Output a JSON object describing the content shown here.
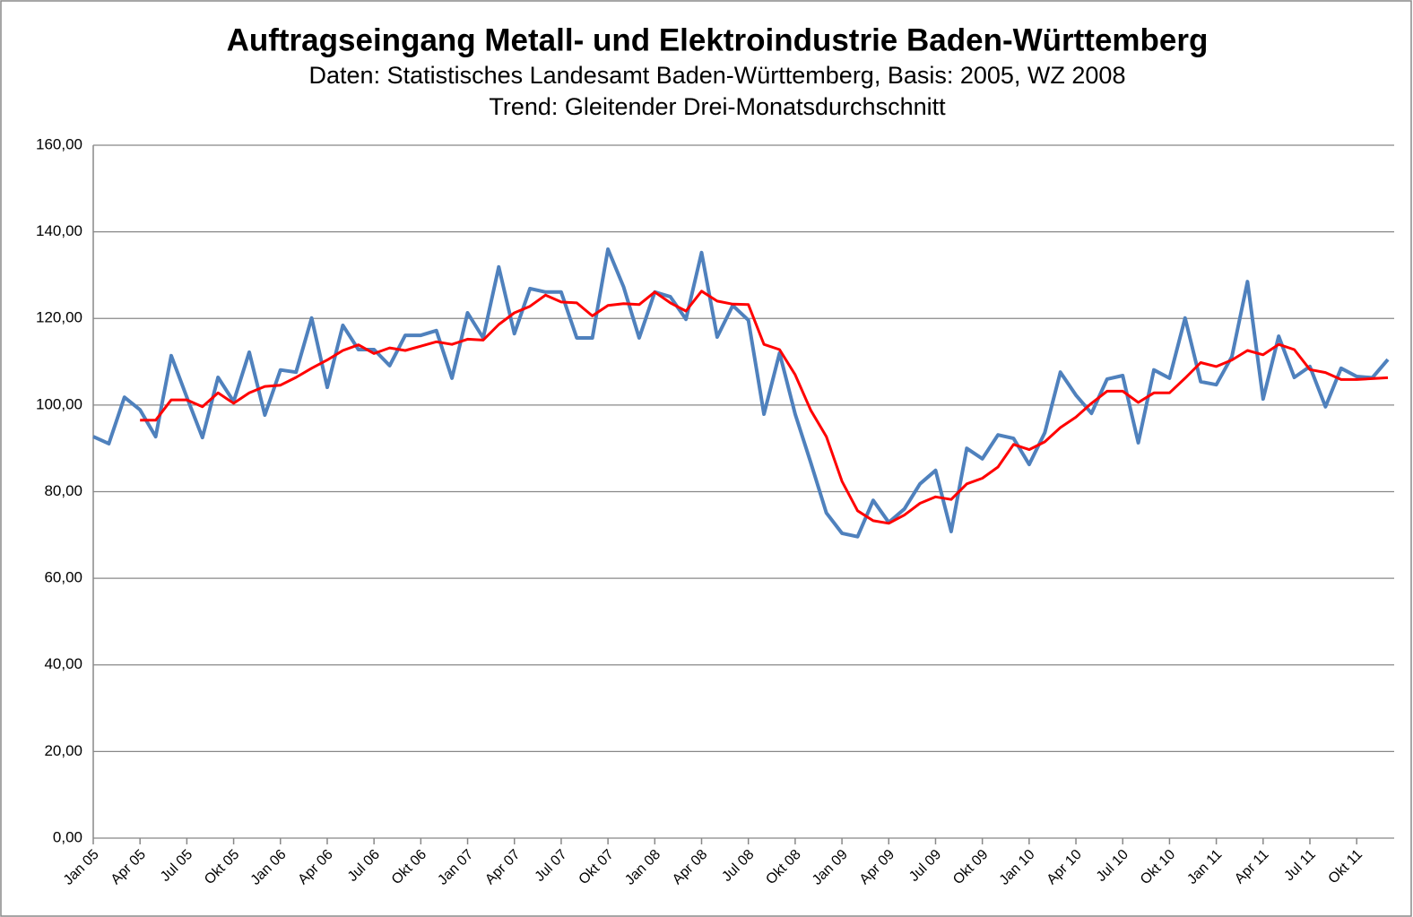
{
  "chart_data": {
    "type": "line",
    "title": "Auftragseingang Metall- und Elektroindustrie Baden-Württemberg",
    "subtitle": [
      "Daten: Statistisches Landesamt Baden-Württemberg, Basis: 2005, WZ 2008",
      "Trend: Gleitender Drei-Monatsdurchschnitt"
    ],
    "categories": [
      "Jan 05",
      null,
      null,
      "Apr 05",
      null,
      null,
      "Jul 05",
      null,
      null,
      "Okt 05",
      null,
      null,
      "Jan 06",
      null,
      null,
      "Apr 06",
      null,
      null,
      "Jul 06",
      null,
      null,
      "Okt 06",
      null,
      null,
      "Jan 07",
      null,
      null,
      "Apr 07",
      null,
      null,
      "Jul 07",
      null,
      null,
      "Okt 07",
      null,
      null,
      "Jan 08",
      null,
      null,
      "Apr 08",
      null,
      null,
      "Jul 08",
      null,
      null,
      "Okt 08",
      null,
      null,
      "Jan 09",
      null,
      null,
      "Apr 09",
      null,
      null,
      "Jul 09",
      null,
      null,
      "Okt 09",
      null,
      null,
      "Jan 10",
      null,
      null,
      "Apr 10",
      null,
      null,
      "Jul 10",
      null,
      null,
      "Okt 10",
      null,
      null,
      "Jan 11",
      null,
      null,
      "Apr 11",
      null,
      null,
      "Jul 11",
      null,
      null,
      "Okt 11",
      null,
      null
    ],
    "series": [
      {
        "color": "#4f81bd",
        "width": 4,
        "values": [
          92.7,
          91.1,
          101.8,
          98.9,
          92.7,
          111.4,
          101.8,
          92.5,
          106.4,
          100.8,
          112.2,
          97.7,
          108.1,
          107.6,
          120.1,
          104.1,
          118.4,
          112.8,
          112.8,
          109.1,
          116.1,
          116.1,
          117.2,
          106.2,
          121.3,
          115.5,
          131.9,
          116.5,
          126.9,
          126.1,
          126.1,
          115.5,
          115.5,
          136.0,
          127.3,
          115.5,
          126.1,
          125.0,
          119.8,
          135.2,
          115.7,
          123.0,
          119.6,
          97.9,
          112.0,
          97.9,
          86.7,
          75.1,
          70.4,
          69.6,
          78.0,
          72.9,
          76.0,
          81.8,
          84.9,
          70.8,
          90.0,
          87.6,
          93.1,
          92.3,
          86.3,
          93.6,
          107.6,
          102.3,
          98.1,
          106.0,
          106.8,
          91.3,
          108.1,
          106.2,
          120.1,
          105.4,
          104.7,
          111.2,
          128.5,
          101.4,
          115.9,
          106.4,
          108.9,
          99.6,
          108.5,
          106.6,
          106.3,
          110.5
        ]
      },
      {
        "color": "#ff0000",
        "width": 3,
        "values": [
          null,
          null,
          null,
          96.5,
          96.5,
          101.2,
          101.2,
          99.6,
          102.8,
          100.4,
          102.8,
          104.3,
          104.6,
          106.4,
          108.5,
          110.4,
          112.6,
          113.9,
          111.9,
          113.2,
          112.6,
          113.6,
          114.6,
          114.0,
          115.2,
          115.0,
          118.6,
          121.3,
          122.8,
          125.4,
          123.8,
          123.6,
          120.6,
          123.0,
          123.4,
          123.2,
          126.1,
          123.6,
          121.7,
          126.3,
          124.0,
          123.3,
          123.2,
          114.0,
          112.8,
          107.0,
          98.8,
          92.7,
          82.4,
          75.6,
          73.3,
          72.7,
          74.6,
          77.3,
          78.8,
          78.2,
          81.8,
          83.1,
          85.7,
          90.9,
          89.7,
          91.5,
          94.8,
          97.2,
          100.4,
          103.2,
          103.2,
          100.6,
          102.8,
          102.8,
          106.2,
          109.8,
          108.9,
          110.4,
          112.6,
          111.6,
          114.0,
          112.8,
          108.2,
          107.5,
          105.9,
          105.9,
          106.1,
          106.3
        ]
      }
    ],
    "ylim": [
      0,
      160
    ],
    "yticks": [
      {
        "value": 0,
        "label": "0,00"
      },
      {
        "value": 20,
        "label": "20,00"
      },
      {
        "value": 40,
        "label": "40,00"
      },
      {
        "value": 60,
        "label": "60,00"
      },
      {
        "value": 80,
        "label": "80,00"
      },
      {
        "value": 100,
        "label": "100,00"
      },
      {
        "value": 120,
        "label": "120,00"
      },
      {
        "value": 140,
        "label": "140,00"
      },
      {
        "value": 160,
        "label": "160,00"
      }
    ],
    "grid": true
  }
}
